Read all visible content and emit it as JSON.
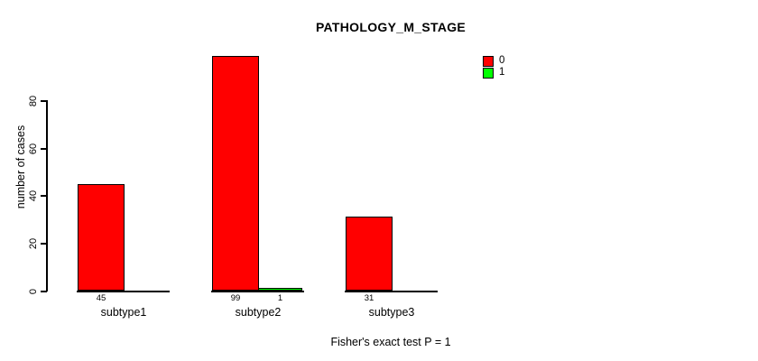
{
  "chart_data": {
    "type": "bar",
    "title": "PATHOLOGY_M_STAGE",
    "ylabel": "number of cases",
    "note": "Fisher's exact test P = 1",
    "categories": [
      "subtype1",
      "subtype2",
      "subtype3"
    ],
    "series": [
      {
        "name": "0",
        "color": "#ff0000",
        "values": [
          45,
          99,
          31
        ]
      },
      {
        "name": "1",
        "color": "#00ff00",
        "values": [
          0,
          1,
          0
        ]
      }
    ],
    "bar_value_labels": [
      [
        "45",
        ""
      ],
      [
        "99",
        "1"
      ],
      [
        "31",
        ""
      ]
    ],
    "yticks": [
      0,
      20,
      40,
      60,
      80
    ],
    "ylim": [
      0,
      105
    ],
    "grid": false,
    "legend_position": "top-right",
    "legend": {
      "entries": [
        {
          "label": "0",
          "color": "#ff0000"
        },
        {
          "label": "1",
          "color": "#00ff00"
        }
      ]
    },
    "colors": {
      "background": "#ffffff",
      "axis": "#000000",
      "text": "#000000",
      "bar_border": "#000000"
    }
  }
}
